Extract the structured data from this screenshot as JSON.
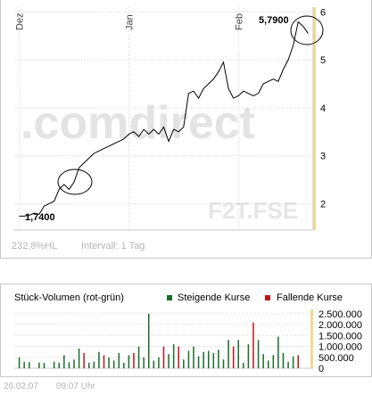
{
  "price_chart": {
    "watermark": ".comdirect",
    "symbol": "F2T.FSE",
    "footer_left": "232,8%HL",
    "footer_right": "Intervall: 1 Tag",
    "month_labels": [
      {
        "label": "Dez",
        "x": 0
      },
      {
        "label": "Jan",
        "x": 22
      },
      {
        "label": "Feb",
        "x": 44
      }
    ],
    "annotations": {
      "low_label": "1,7400",
      "high_label": "5,7900"
    },
    "colors": {
      "line": "#000000",
      "grid": "#d2d2d2",
      "frame": "#c8c8c8",
      "accent_band": "#f5d98c",
      "watermark": "#e3e3e3"
    }
  },
  "volume_chart": {
    "title": "Stück-Volumen (rot-grün)",
    "legend": [
      {
        "label": "Steigende Kurse",
        "color": "#1b6b2e"
      },
      {
        "label": "Fallende Kurse",
        "color": "#c0141e"
      }
    ]
  },
  "footer": {
    "date": "26.02.07",
    "time": "09:07 Uhr"
  },
  "chart_data": [
    {
      "type": "line",
      "x": [
        0,
        1,
        2,
        3,
        4,
        5,
        6,
        7,
        8,
        9,
        10,
        11,
        12,
        13,
        14,
        15,
        16,
        17,
        18,
        19,
        20,
        21,
        22,
        23,
        24,
        25,
        26,
        27,
        28,
        29,
        30,
        31,
        32,
        33,
        34,
        35,
        36,
        37,
        38,
        39,
        40,
        41,
        42,
        43,
        44,
        45,
        46,
        47,
        48,
        49,
        50,
        51,
        52,
        53,
        54,
        55,
        56,
        57,
        58
      ],
      "y": [
        1.74,
        1.74,
        1.76,
        1.8,
        1.78,
        1.95,
        2.0,
        2.05,
        2.3,
        2.4,
        2.3,
        2.45,
        2.75,
        2.85,
        2.95,
        3.05,
        3.1,
        3.15,
        3.2,
        3.25,
        3.3,
        3.35,
        3.45,
        3.5,
        3.4,
        3.55,
        3.45,
        3.55,
        3.45,
        3.6,
        3.3,
        3.55,
        3.5,
        3.6,
        4.3,
        4.35,
        4.2,
        4.4,
        4.5,
        4.6,
        4.75,
        4.95,
        4.4,
        4.2,
        4.25,
        4.35,
        4.3,
        4.25,
        4.3,
        4.5,
        4.55,
        4.6,
        4.55,
        4.8,
        5.0,
        5.3,
        5.79,
        5.7,
        5.55
      ],
      "xlabel": "",
      "ylabel": "",
      "yticks": [
        2,
        3,
        4,
        5,
        6
      ],
      "ylim": [
        1.45,
        6.1
      ],
      "xlim": [
        -1,
        59
      ],
      "grid": true,
      "title": ""
    },
    {
      "type": "bar",
      "x": [
        0,
        1,
        2,
        3,
        4,
        5,
        6,
        7,
        8,
        9,
        10,
        11,
        12,
        13,
        14,
        15,
        16,
        17,
        18,
        19,
        20,
        21,
        22,
        23,
        24,
        25,
        26,
        27,
        28,
        29,
        30,
        31,
        32,
        33,
        34,
        35,
        36,
        37,
        38,
        39,
        40,
        41,
        42,
        43,
        44,
        45,
        46,
        47,
        48,
        49,
        50,
        51,
        52,
        53,
        54,
        55,
        56,
        57
      ],
      "values": [
        500000,
        300000,
        280000,
        0,
        260000,
        250000,
        0,
        300000,
        250000,
        600000,
        280000,
        400000,
        900000,
        700000,
        250000,
        300000,
        750000,
        600000,
        500000,
        350000,
        700000,
        250000,
        600000,
        700000,
        1000000,
        500000,
        2500000,
        350000,
        500000,
        1000000,
        650000,
        1100000,
        1000000,
        400000,
        800000,
        1000000,
        550000,
        750000,
        800000,
        700000,
        850000,
        400000,
        1300000,
        1000000,
        1300000,
        250000,
        1100000,
        2100000,
        1300000,
        650000,
        350000,
        600000,
        1450000,
        700000,
        300000,
        550000,
        600000,
        0
      ],
      "directions": [
        "up",
        "up",
        "up",
        "up",
        "up",
        "up",
        "up",
        "up",
        "up",
        "up",
        "up",
        "up",
        "up",
        "down",
        "up",
        "up",
        "up",
        "down",
        "up",
        "up",
        "up",
        "up",
        "up",
        "down",
        "up",
        "up",
        "up",
        "up",
        "up",
        "down",
        "up",
        "up",
        "down",
        "up",
        "up",
        "up",
        "up",
        "up",
        "up",
        "up",
        "up",
        "up",
        "up",
        "down",
        "up",
        "up",
        "up",
        "down",
        "up",
        "up",
        "up",
        "up",
        "up",
        "up",
        "up",
        "up",
        "down",
        "up"
      ],
      "yticks": [
        500000,
        1000000,
        1500000,
        2000000,
        2500000
      ],
      "ytick_labels": [
        "500.000",
        "1.000.000",
        "1.500.000",
        "2.000.000",
        "2.500.000"
      ],
      "ylim": [
        0,
        2700000
      ],
      "xlim": [
        -1,
        59
      ],
      "grid": true,
      "title": ""
    }
  ]
}
